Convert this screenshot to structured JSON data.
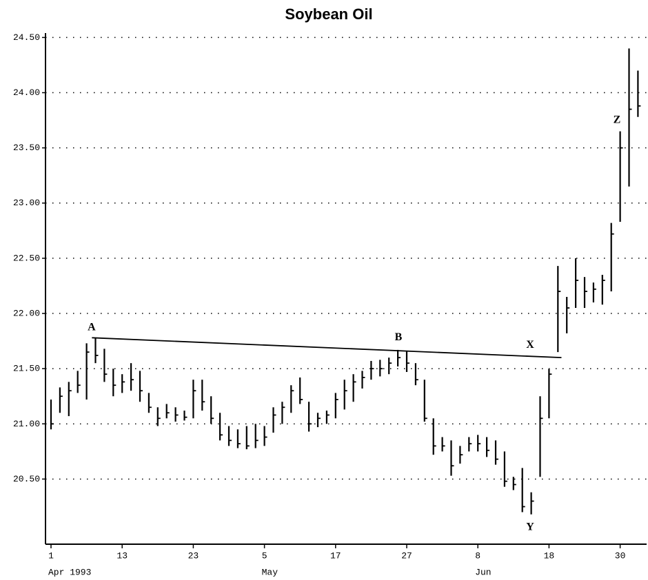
{
  "chart_data": {
    "type": "hlc",
    "title": "Soybean Oil",
    "categories": [
      "1",
      null,
      null,
      null,
      null,
      null,
      null,
      null,
      "13",
      null,
      null,
      null,
      null,
      null,
      null,
      null,
      "23",
      null,
      null,
      null,
      null,
      null,
      null,
      null,
      "5",
      null,
      null,
      null,
      null,
      null,
      null,
      null,
      "17",
      null,
      null,
      null,
      null,
      null,
      null,
      null,
      "27",
      null,
      null,
      null,
      null,
      null,
      null,
      null,
      "8",
      null,
      null,
      null,
      null,
      null,
      null,
      null,
      "18",
      null,
      null,
      null,
      null,
      null,
      null,
      null,
      "30",
      null,
      null
    ],
    "month_labels": [
      {
        "label": "Apr 1993",
        "at": 0
      },
      {
        "label": "May",
        "at": 24
      },
      {
        "label": "Jun",
        "at": 48
      }
    ],
    "high": [
      21.22,
      21.33,
      21.38,
      21.48,
      21.73,
      21.78,
      21.68,
      21.5,
      21.45,
      21.55,
      21.48,
      21.28,
      21.15,
      21.18,
      21.15,
      21.12,
      21.4,
      21.4,
      21.25,
      21.1,
      20.98,
      20.95,
      20.98,
      21.0,
      20.98,
      21.15,
      21.2,
      21.35,
      21.42,
      21.2,
      21.1,
      21.12,
      21.28,
      21.4,
      21.45,
      21.48,
      21.57,
      21.58,
      21.6,
      21.67,
      21.66,
      21.55,
      21.4,
      21.05,
      20.88,
      20.85,
      20.8,
      20.88,
      20.9,
      20.88,
      20.85,
      20.75,
      20.52,
      20.6,
      20.38,
      21.25,
      21.5,
      22.43,
      22.15,
      22.5,
      22.33,
      22.28,
      22.35,
      22.82,
      23.65,
      24.4,
      24.2
    ],
    "low": [
      20.95,
      21.1,
      21.07,
      21.28,
      21.22,
      21.55,
      21.38,
      21.25,
      21.28,
      21.3,
      21.2,
      21.1,
      20.98,
      21.05,
      21.02,
      21.03,
      21.05,
      21.12,
      21.0,
      20.85,
      20.8,
      20.78,
      20.77,
      20.78,
      20.8,
      20.92,
      21.0,
      21.1,
      21.18,
      20.93,
      20.97,
      21.0,
      21.05,
      21.13,
      21.2,
      21.32,
      21.4,
      21.43,
      21.45,
      21.52,
      21.47,
      21.35,
      21.02,
      20.72,
      20.75,
      20.53,
      20.64,
      20.75,
      20.75,
      20.7,
      20.63,
      20.43,
      20.4,
      20.2,
      20.18,
      20.52,
      21.05,
      21.65,
      21.82,
      22.05,
      22.05,
      22.1,
      22.08,
      22.2,
      22.83,
      23.15,
      23.78
    ],
    "close": [
      21.0,
      21.25,
      21.3,
      21.35,
      21.65,
      21.62,
      21.45,
      21.35,
      21.38,
      21.4,
      21.3,
      21.15,
      21.05,
      21.1,
      21.08,
      21.06,
      21.3,
      21.2,
      21.05,
      20.9,
      20.85,
      20.82,
      20.8,
      20.85,
      20.88,
      21.08,
      21.15,
      21.3,
      21.22,
      21.0,
      21.05,
      21.08,
      21.22,
      21.3,
      21.38,
      21.42,
      21.5,
      21.5,
      21.55,
      21.6,
      21.55,
      21.4,
      21.05,
      20.8,
      20.8,
      20.62,
      20.72,
      20.82,
      20.82,
      20.76,
      20.68,
      20.48,
      20.45,
      20.25,
      20.3,
      21.05,
      21.45,
      22.2,
      22.05,
      22.3,
      22.2,
      22.22,
      22.3,
      22.72,
      23.5,
      23.85,
      23.88
    ],
    "color": "#000000",
    "ylim": [
      19.91,
      24.54
    ],
    "yticks": [
      {
        "value": 20.5,
        "label": "20.50"
      },
      {
        "value": 21,
        "label": "21.00"
      },
      {
        "value": 21.5,
        "label": "21.50"
      },
      {
        "value": 22,
        "label": "22.00"
      },
      {
        "value": 22.5,
        "label": "22.50"
      },
      {
        "value": 23,
        "label": "23.00"
      },
      {
        "value": 23.5,
        "label": "23.50"
      },
      {
        "value": 24,
        "label": "24.00"
      },
      {
        "value": 24.5,
        "label": "24.50"
      }
    ],
    "grid": true,
    "trendline": {
      "x": [
        4.6,
        57.4
      ],
      "y": [
        21.78,
        21.6
      ]
    },
    "annotations": [
      {
        "text": "A",
        "x": 4.57,
        "y": 21.87
      },
      {
        "text": "B",
        "x": 39.07,
        "y": 21.78
      },
      {
        "text": "X",
        "x": 53.88,
        "y": 21.71
      },
      {
        "text": "Y",
        "x": 53.88,
        "y": 20.06
      },
      {
        "text": "Z",
        "x": 63.64,
        "y": 23.75
      }
    ]
  }
}
